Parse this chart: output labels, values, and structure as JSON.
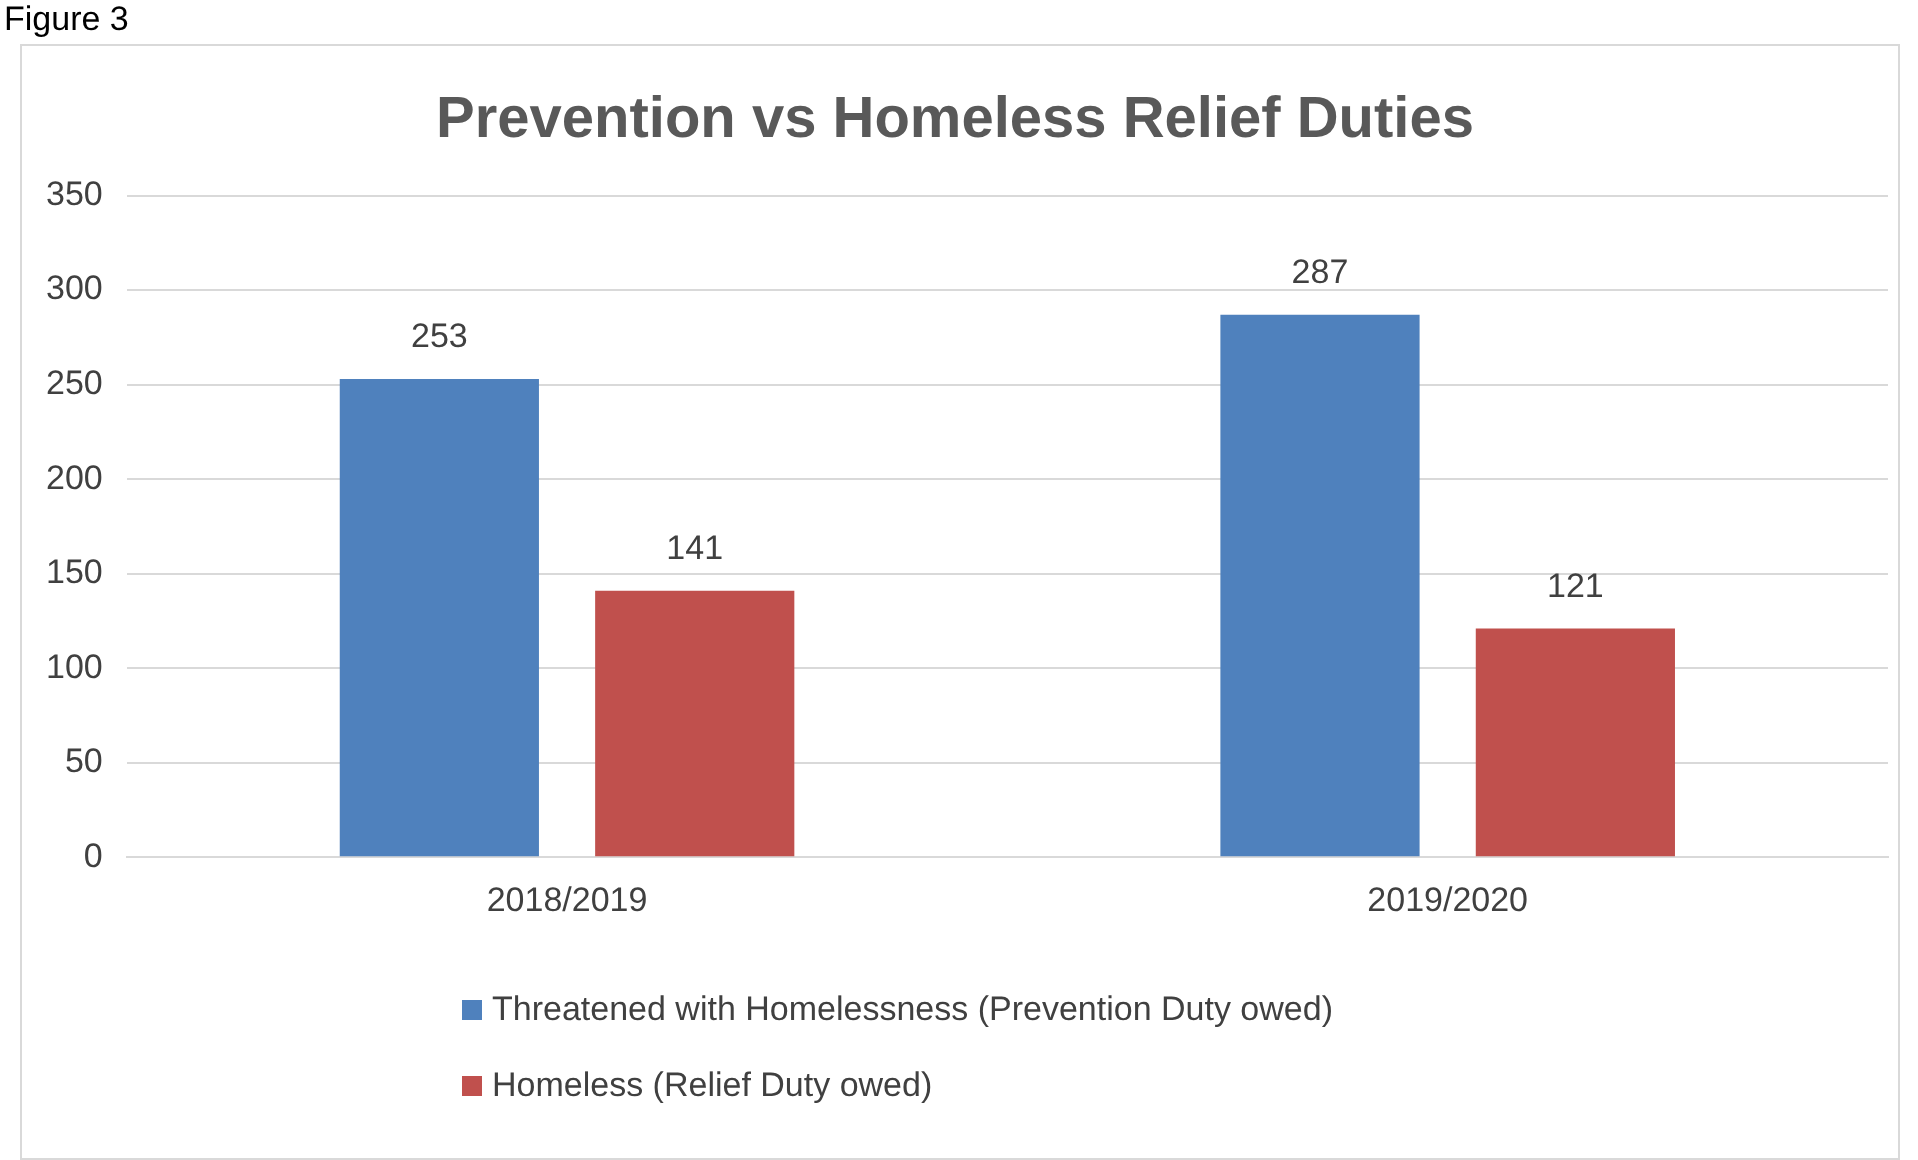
{
  "chart_data": {
    "type": "bar",
    "title": "Prevention vs Homeless Relief Duties",
    "annotations": [
      "Figure 3"
    ],
    "categories": [
      "2018/2019",
      "2019/2020"
    ],
    "series": [
      {
        "name": "Threatened with Homelessness (Prevention Duty owed)",
        "color": "#4f81bd",
        "values": [
          253,
          287
        ]
      },
      {
        "name": "Homeless (Relief Duty owed)",
        "color": "#c0504d",
        "values": [
          141,
          121
        ]
      }
    ],
    "ylim": [
      0,
      350
    ],
    "yticks": [
      0,
      50,
      100,
      150,
      200,
      250,
      300,
      350
    ],
    "grid": "y",
    "legend": "bottom",
    "data_labels": true
  }
}
